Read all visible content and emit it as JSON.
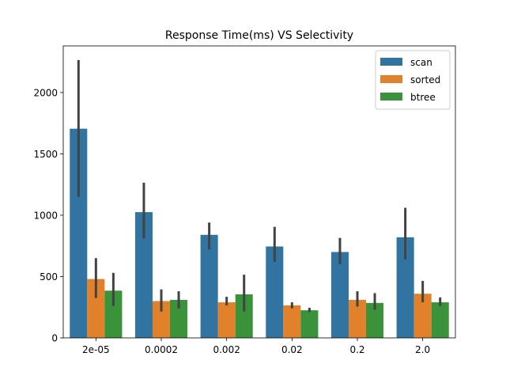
{
  "chart_data": {
    "type": "bar",
    "title": "Response Time(ms) VS Selectivity",
    "xlabel": "",
    "ylabel": "",
    "categories": [
      "2e-05",
      "0.0002",
      "0.002",
      "0.02",
      "0.2",
      "2.0"
    ],
    "ylim": [
      0,
      2380
    ],
    "yticks": [
      0,
      500,
      1000,
      1500,
      2000
    ],
    "grid": false,
    "legend_position": "top-right",
    "series": [
      {
        "name": "scan",
        "color": "#3274a1",
        "values": [
          1705,
          1025,
          840,
          745,
          700,
          820
        ],
        "error_low": [
          1150,
          810,
          720,
          620,
          600,
          640
        ],
        "error_high": [
          2265,
          1265,
          940,
          905,
          815,
          1060
        ]
      },
      {
        "name": "sorted",
        "color": "#e1812c",
        "values": [
          480,
          300,
          290,
          265,
          310,
          360
        ],
        "error_low": [
          325,
          215,
          265,
          240,
          255,
          290
        ],
        "error_high": [
          650,
          395,
          335,
          290,
          380,
          465
        ]
      },
      {
        "name": "btree",
        "color": "#3a923a",
        "values": [
          385,
          310,
          355,
          225,
          285,
          290
        ],
        "error_low": [
          260,
          240,
          215,
          210,
          230,
          260
        ],
        "error_high": [
          530,
          380,
          515,
          245,
          365,
          330
        ]
      }
    ],
    "errorbar_color": "#424242"
  }
}
